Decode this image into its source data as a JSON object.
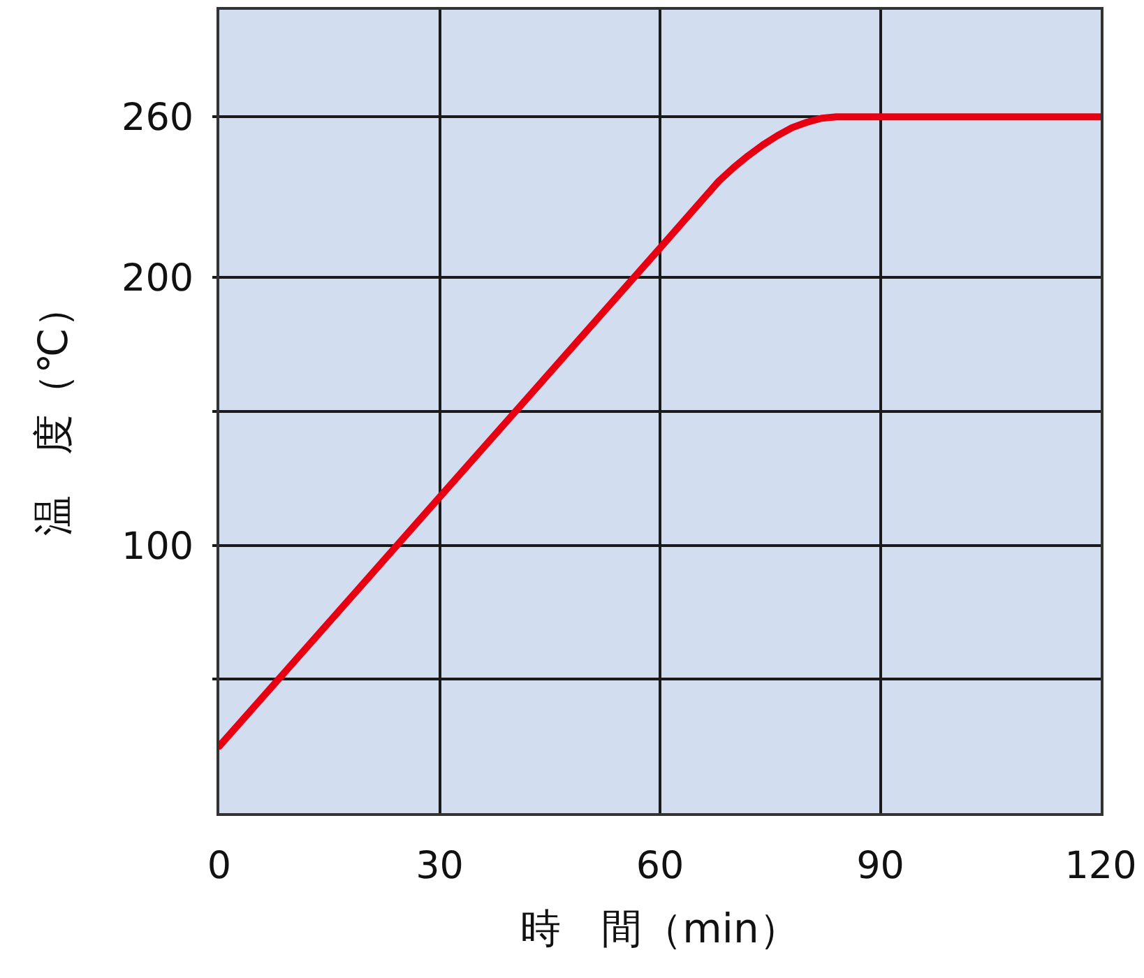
{
  "chart_data": {
    "type": "line",
    "xlabel": "時　間（min）",
    "ylabel": "温　度（℃）",
    "x": [
      0,
      30,
      60,
      68,
      70,
      72,
      74,
      76,
      78,
      80,
      82,
      84,
      120
    ],
    "series": [
      {
        "color": "#e60012",
        "values": [
          25,
          118,
          211,
          236,
          241,
          245.5,
          249.5,
          253,
          256,
          258,
          259.5,
          260,
          260
        ]
      }
    ],
    "xlim": [
      0,
      120
    ],
    "xticks": [
      0,
      30,
      60,
      90,
      120
    ],
    "ylim": [
      0,
      300
    ],
    "yticks": [
      {
        "value": 50,
        "label": null
      },
      100,
      {
        "value": 150,
        "label": null
      },
      200,
      260
    ],
    "grid": true,
    "marker": "none",
    "line_style": "solid"
  }
}
